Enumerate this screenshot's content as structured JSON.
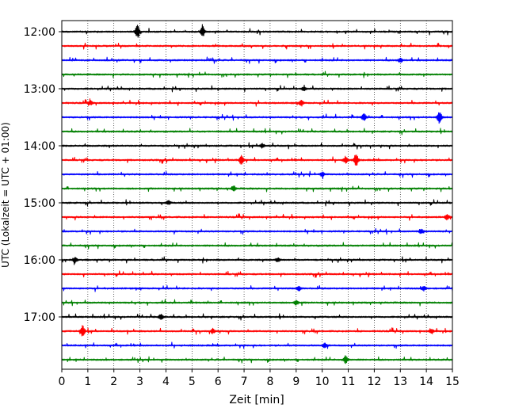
{
  "chart_data": {
    "type": "line",
    "title": "",
    "xlabel": "Zeit  [min]",
    "ylabel": "UTC (Lokalzeit = UTC + 01:00)",
    "xlim": [
      0,
      15
    ],
    "x_ticks": [
      0,
      1,
      2,
      3,
      4,
      5,
      6,
      7,
      8,
      9,
      10,
      11,
      12,
      13,
      14,
      15
    ],
    "x_tick_labels": [
      "0",
      "1",
      "2",
      "3",
      "4",
      "5",
      "6",
      "7",
      "8",
      "9",
      "10",
      "11",
      "12",
      "13",
      "14",
      "15"
    ],
    "y_tick_labels": [
      "12:00",
      "13:00",
      "14:00",
      "15:00",
      "16:00",
      "17:00"
    ],
    "vertical_grid": true,
    "grid_style": "dotted",
    "trace_colors": [
      "#000000",
      "#ff0000",
      "#0000ff",
      "#008000"
    ],
    "rows": [
      {
        "start": "12:00",
        "events": [
          [
            2.9,
            1.0
          ],
          [
            5.4,
            0.8
          ]
        ]
      },
      {
        "start": "12:15",
        "events": []
      },
      {
        "start": "12:30",
        "events": [
          [
            13.0,
            0.35
          ]
        ]
      },
      {
        "start": "12:45",
        "events": []
      },
      {
        "start": "13:00",
        "events": [
          [
            9.3,
            0.3
          ]
        ]
      },
      {
        "start": "13:15",
        "events": [
          [
            1.1,
            0.3
          ],
          [
            9.2,
            0.35
          ]
        ]
      },
      {
        "start": "13:30",
        "events": [
          [
            11.6,
            0.55
          ],
          [
            14.5,
            1.0
          ]
        ]
      },
      {
        "start": "13:45",
        "events": []
      },
      {
        "start": "14:00",
        "events": [
          [
            7.7,
            0.3
          ]
        ]
      },
      {
        "start": "14:15",
        "events": [
          [
            6.9,
            0.75
          ],
          [
            10.9,
            0.5
          ],
          [
            11.3,
            0.95
          ]
        ]
      },
      {
        "start": "14:30",
        "events": [
          [
            10.0,
            0.35
          ]
        ]
      },
      {
        "start": "14:45",
        "events": [
          [
            6.6,
            0.4
          ]
        ]
      },
      {
        "start": "15:00",
        "events": [
          [
            4.1,
            0.3
          ]
        ]
      },
      {
        "start": "15:15",
        "events": [
          [
            14.8,
            0.4
          ]
        ]
      },
      {
        "start": "15:30",
        "events": [
          [
            13.8,
            0.35
          ]
        ]
      },
      {
        "start": "15:45",
        "events": []
      },
      {
        "start": "16:00",
        "events": [
          [
            0.5,
            0.4
          ],
          [
            8.3,
            0.35
          ]
        ]
      },
      {
        "start": "16:15",
        "events": []
      },
      {
        "start": "16:30",
        "events": [
          [
            9.1,
            0.35
          ],
          [
            13.9,
            0.35
          ]
        ]
      },
      {
        "start": "16:45",
        "events": [
          [
            9.0,
            0.35
          ]
        ]
      },
      {
        "start": "17:00",
        "events": [
          [
            3.8,
            0.4
          ]
        ]
      },
      {
        "start": "17:15",
        "events": [
          [
            0.8,
            0.9
          ],
          [
            5.8,
            0.35
          ],
          [
            14.2,
            0.35
          ]
        ]
      },
      {
        "start": "17:30",
        "events": [
          [
            10.1,
            0.35
          ]
        ]
      },
      {
        "start": "17:45",
        "events": [
          [
            10.9,
            0.6
          ]
        ]
      }
    ]
  }
}
